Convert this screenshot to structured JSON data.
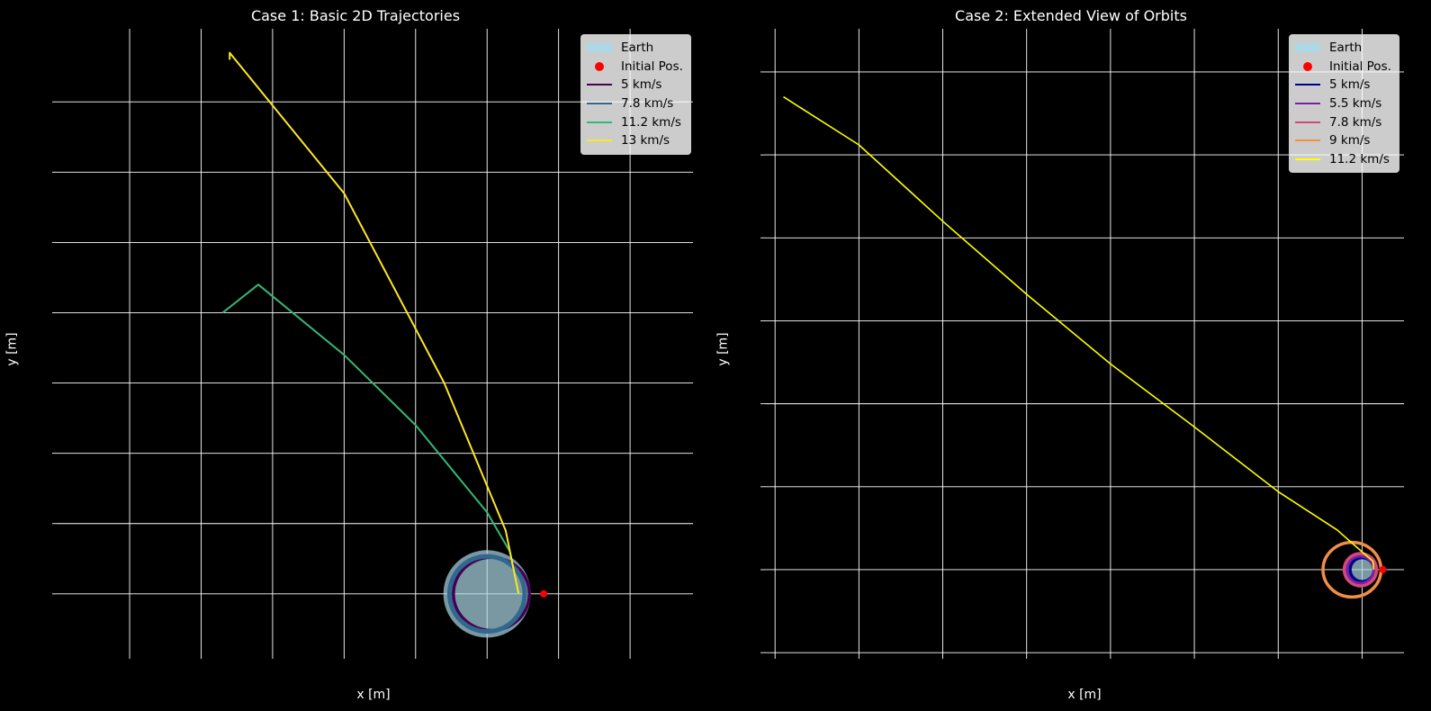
{
  "chart_data": [
    {
      "type": "line",
      "title": "Case 1: Basic 2D Trajectories",
      "xlabel": "x [m]",
      "ylabel": "y [m]",
      "xlim": [
        -30100000.0,
        14400000.0
      ],
      "ylim": [
        -4300000.0,
        40200000.0
      ],
      "grid": true,
      "legend_position": "top-right",
      "earth": {
        "name": "Earth",
        "radius": 6371000.0,
        "color": "#add8e6"
      },
      "initial_position": {
        "name": "Initial Pos.",
        "x": 2200000.0,
        "y": 0,
        "color": "#ff0000"
      },
      "series": [
        {
          "name": "5 km/s",
          "color": "#440154",
          "kind": "ellipse",
          "x_min": -1600000.0,
          "x_max": 2200000.0,
          "y_min": -1800000.0,
          "y_max": 1800000.0
        },
        {
          "name": "7.8 km/s",
          "color": "#31688e",
          "kind": "circle",
          "cx": 0,
          "cy": 0,
          "r": 2000000.0
        },
        {
          "name": "11.2 km/s",
          "color": "#35b779",
          "kind": "curve",
          "points": [
            [
              2200000.0,
              0
            ],
            [
              1600000.0,
              3000000.0
            ],
            [
              0,
              5800000.0
            ],
            [
              -5000000.0,
              12000000.0
            ],
            [
              -10000000.0,
              17000000.0
            ],
            [
              -16000000.0,
              22000000.0
            ],
            [
              -18500000.0,
              20000000.0
            ]
          ]
        },
        {
          "name": "13 km/s",
          "color": "#fde725",
          "kind": "curve",
          "points": [
            [
              2200000.0,
              0
            ],
            [
              1300000.0,
              4500000.0
            ],
            [
              -3000000.0,
              15000000.0
            ],
            [
              -10000000.0,
              28500000.0
            ],
            [
              -18000000.0,
              38500000.0
            ],
            [
              -18000000.0,
              38000000.0
            ]
          ]
        }
      ]
    },
    {
      "type": "line",
      "title": "Case 2: Extended View of Orbits",
      "xlabel": "x [m]",
      "ylabel": "y [m]",
      "xlim": [
        -356000000.0,
        25000000.0
      ],
      "ylim": [
        -51000000.0,
        326000000.0
      ],
      "grid": true,
      "legend_position": "top-right",
      "earth": {
        "name": "Earth",
        "radius": 6371000.0,
        "color": "#add8e6"
      },
      "initial_position": {
        "name": "Initial Pos.",
        "x": 7000000.0,
        "y": 0,
        "color": "#ff0000"
      },
      "series": [
        {
          "name": "5 km/s",
          "color": "#00008b",
          "kind": "circle",
          "cx": 0,
          "cy": 0,
          "r": 5000000.0
        },
        {
          "name": "5.5 km/s",
          "color": "#7b1fa2",
          "kind": "circle",
          "cx": -1000000.0,
          "cy": 0,
          "r": 6000000.0
        },
        {
          "name": "7.8 km/s",
          "color": "#d14a7b",
          "kind": "circle",
          "cx": -1000000.0,
          "cy": 0,
          "r": 7500000.0
        },
        {
          "name": "9 km/s",
          "color": "#f28e46",
          "kind": "ellipse",
          "x_min": -19000000.0,
          "x_max": 7000000.0,
          "y_min": -12000000.0,
          "y_max": 12000000.0
        },
        {
          "name": "11.2 km/s",
          "color": "#ffff00",
          "kind": "curve",
          "points": [
            [
              7000000.0,
              0
            ],
            [
              6500000.0,
              5000000.0
            ],
            [
              -15000000.0,
              24000000.0
            ],
            [
              -50000000.0,
              47000000.0
            ],
            [
              -100000000.0,
              86000000.0
            ],
            [
              -150000000.0,
              124000000.0
            ],
            [
              -200000000.0,
              166000000.0
            ],
            [
              -250000000.0,
              210000000.0
            ],
            [
              -300000000.0,
              256000000.0
            ],
            [
              -345000000.0,
              285000000.0
            ]
          ]
        }
      ]
    }
  ]
}
